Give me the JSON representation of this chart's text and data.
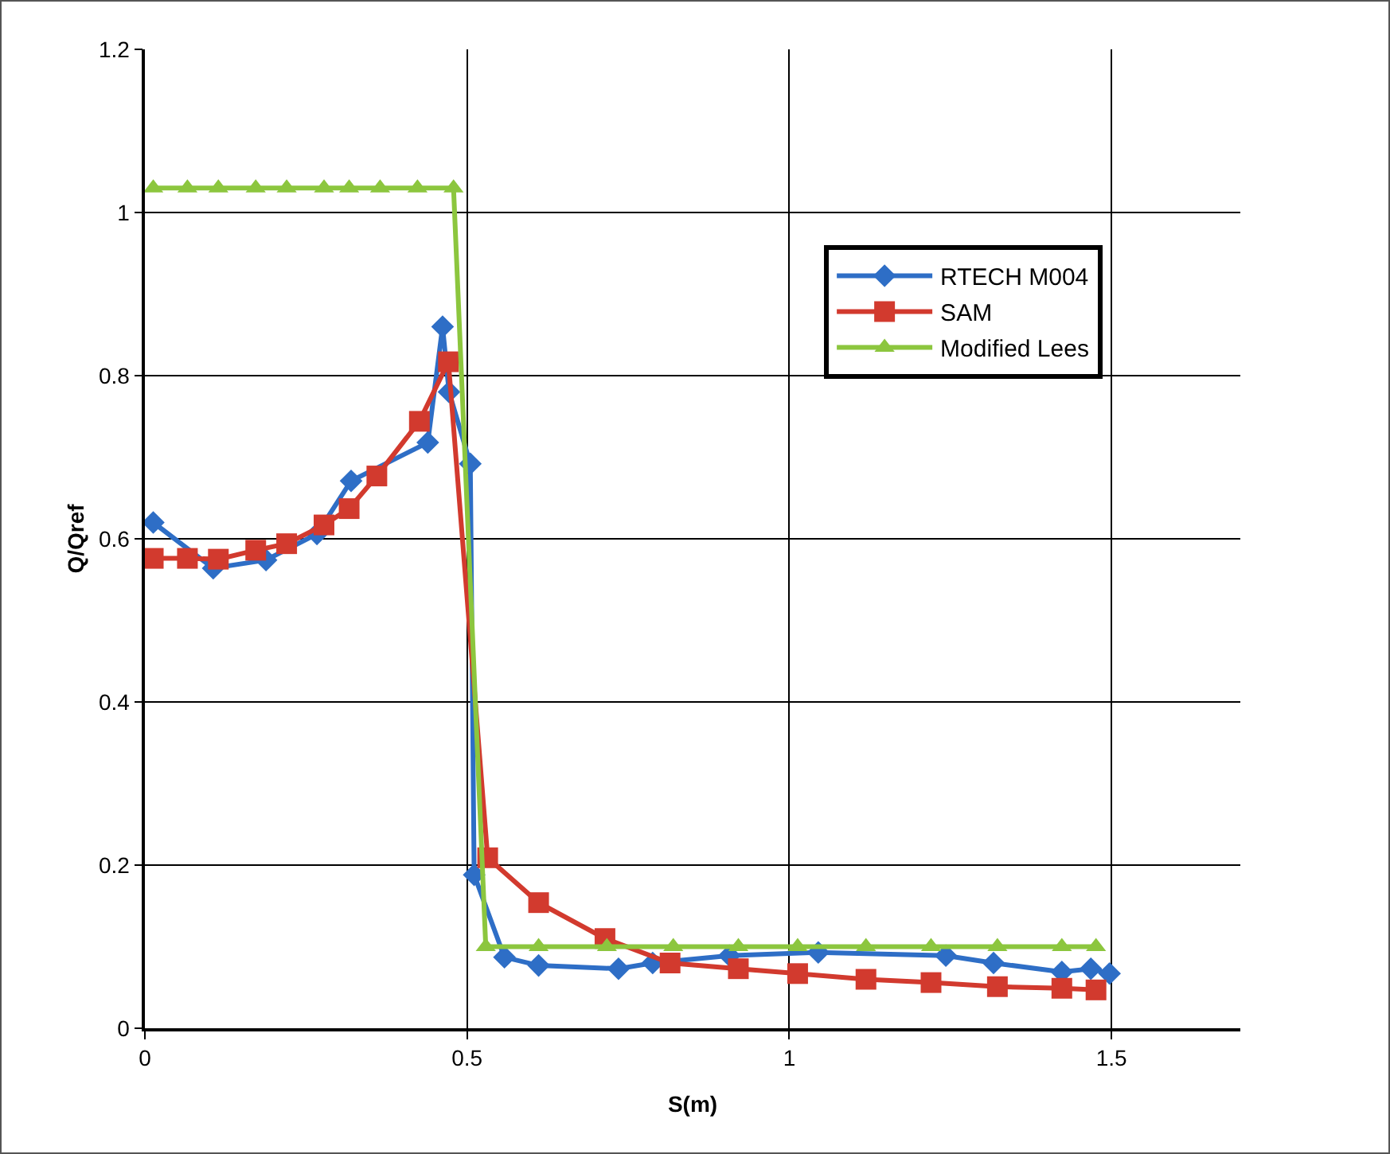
{
  "chart_data": {
    "type": "line",
    "xlabel": "S(m)",
    "ylabel": "Q/Qref",
    "xlim": [
      0,
      1.7
    ],
    "xticks": [
      0,
      0.5,
      1,
      1.5
    ],
    "ylim": [
      0,
      1.2
    ],
    "yticks": [
      0,
      0.2,
      0.4,
      0.6,
      0.8,
      1,
      1.2
    ],
    "grid": true,
    "legend": "right",
    "series": [
      {
        "name": "RTECH M004",
        "color": "#2e6ec6",
        "marker": "diamond",
        "x": [
          0.013,
          0.106,
          0.188,
          0.267,
          0.32,
          0.439,
          0.462,
          0.472,
          0.505,
          0.511,
          0.558,
          0.611,
          0.735,
          0.788,
          0.907,
          1.045,
          1.243,
          1.317,
          1.423,
          1.468,
          1.497
        ],
        "values": [
          0.62,
          0.564,
          0.574,
          0.606,
          0.671,
          0.718,
          0.86,
          0.78,
          0.692,
          0.188,
          0.087,
          0.077,
          0.073,
          0.08,
          0.089,
          0.093,
          0.089,
          0.08,
          0.069,
          0.073,
          0.067
        ]
      },
      {
        "name": "SAM",
        "color": "#d23a2e",
        "marker": "square",
        "x": [
          0.013,
          0.066,
          0.114,
          0.172,
          0.22,
          0.278,
          0.317,
          0.36,
          0.426,
          0.471,
          0.532,
          0.611,
          0.714,
          0.815,
          0.921,
          1.013,
          1.119,
          1.22,
          1.323,
          1.423,
          1.476
        ],
        "values": [
          0.576,
          0.576,
          0.575,
          0.586,
          0.594,
          0.617,
          0.637,
          0.677,
          0.744,
          0.817,
          0.209,
          0.154,
          0.11,
          0.08,
          0.073,
          0.067,
          0.06,
          0.056,
          0.051,
          0.049,
          0.047
        ]
      },
      {
        "name": "Modified Lees",
        "color": "#8cc63e",
        "marker": "triangle",
        "x": [
          0.013,
          0.066,
          0.114,
          0.172,
          0.22,
          0.278,
          0.317,
          0.365,
          0.423,
          0.479,
          0.529,
          0.611,
          0.717,
          0.82,
          0.921,
          1.013,
          1.119,
          1.22,
          1.323,
          1.423,
          1.476
        ],
        "values": [
          1.03,
          1.03,
          1.03,
          1.03,
          1.03,
          1.03,
          1.03,
          1.03,
          1.03,
          1.03,
          0.1,
          0.1,
          0.1,
          0.1,
          0.1,
          0.1,
          0.1,
          0.1,
          0.1,
          0.1,
          0.1
        ]
      }
    ]
  }
}
